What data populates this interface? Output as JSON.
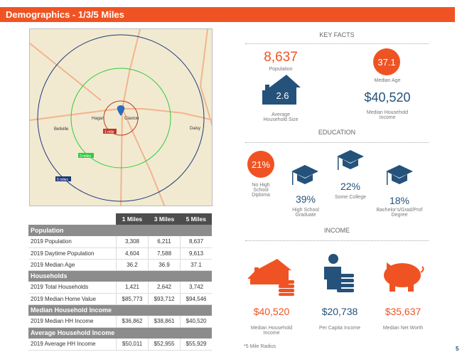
{
  "header": {
    "title": "Demographics - 1/3/5 Miles"
  },
  "map": {
    "places": [
      "Hagan",
      "Claxton",
      "Bellville",
      "Daisy"
    ],
    "ring_labels": [
      "1 mile",
      "3 miles",
      "5 miles"
    ],
    "ring_colors": [
      "#c0392b",
      "#2ecc40",
      "#1f3a7a"
    ]
  },
  "table": {
    "columns": [
      "1 Miles",
      "3 Miles",
      "5 Miles"
    ],
    "sections": [
      {
        "title": "Population",
        "rows": [
          [
            "2019 Population",
            "3,308",
            "6,211",
            "8,637"
          ],
          [
            "2019 Daytime Population",
            "4,604",
            "7,588",
            "9,613"
          ],
          [
            "2019 Median Age",
            "36.2",
            "36.9",
            "37.1"
          ]
        ]
      },
      {
        "title": "Households",
        "rows": [
          [
            "2019 Total Households",
            "1,421",
            "2,642",
            "3,742"
          ],
          [
            "2019 Median Home Value",
            "$85,773",
            "$93,712",
            "$94,546"
          ]
        ]
      },
      {
        "title": "Median Household Income",
        "rows": [
          [
            "2019 Median HH Income",
            "$36,862",
            "$38,861",
            "$40,520"
          ]
        ]
      },
      {
        "title": "Average Household Income",
        "rows": [
          [
            "2019 Average HH Income",
            "$50,011",
            "$52,955",
            "$55,929"
          ]
        ]
      }
    ]
  },
  "key_facts": {
    "title": "KEY FACTS",
    "population": "8,637",
    "population_label": "Population",
    "median_age": "37.1",
    "median_age_label": "Median Age",
    "hh_size": "2.6",
    "hh_size_label": "Average Household Size",
    "median_income": "$40,520",
    "median_income_label": "Median Household Income"
  },
  "education": {
    "title": "EDUCATION",
    "no_hs": "21%",
    "no_hs_label": "No High School Diploma",
    "hs": "39%",
    "hs_label": "High School Graduate",
    "some_college": "22%",
    "some_college_label": "Some College",
    "bachelors": "18%",
    "bachelors_label": "Bachelor's/Grad/Prof Degree"
  },
  "income": {
    "title": "INCOME",
    "median_hh": "$40,520",
    "median_hh_label": "Median Household Income",
    "per_capita": "$20,738",
    "per_capita_label": "Per Capita Income",
    "net_worth": "$35,637",
    "net_worth_label": "Median Net Worth",
    "footnote": "*5 Mile Radius"
  },
  "page_number": "5"
}
